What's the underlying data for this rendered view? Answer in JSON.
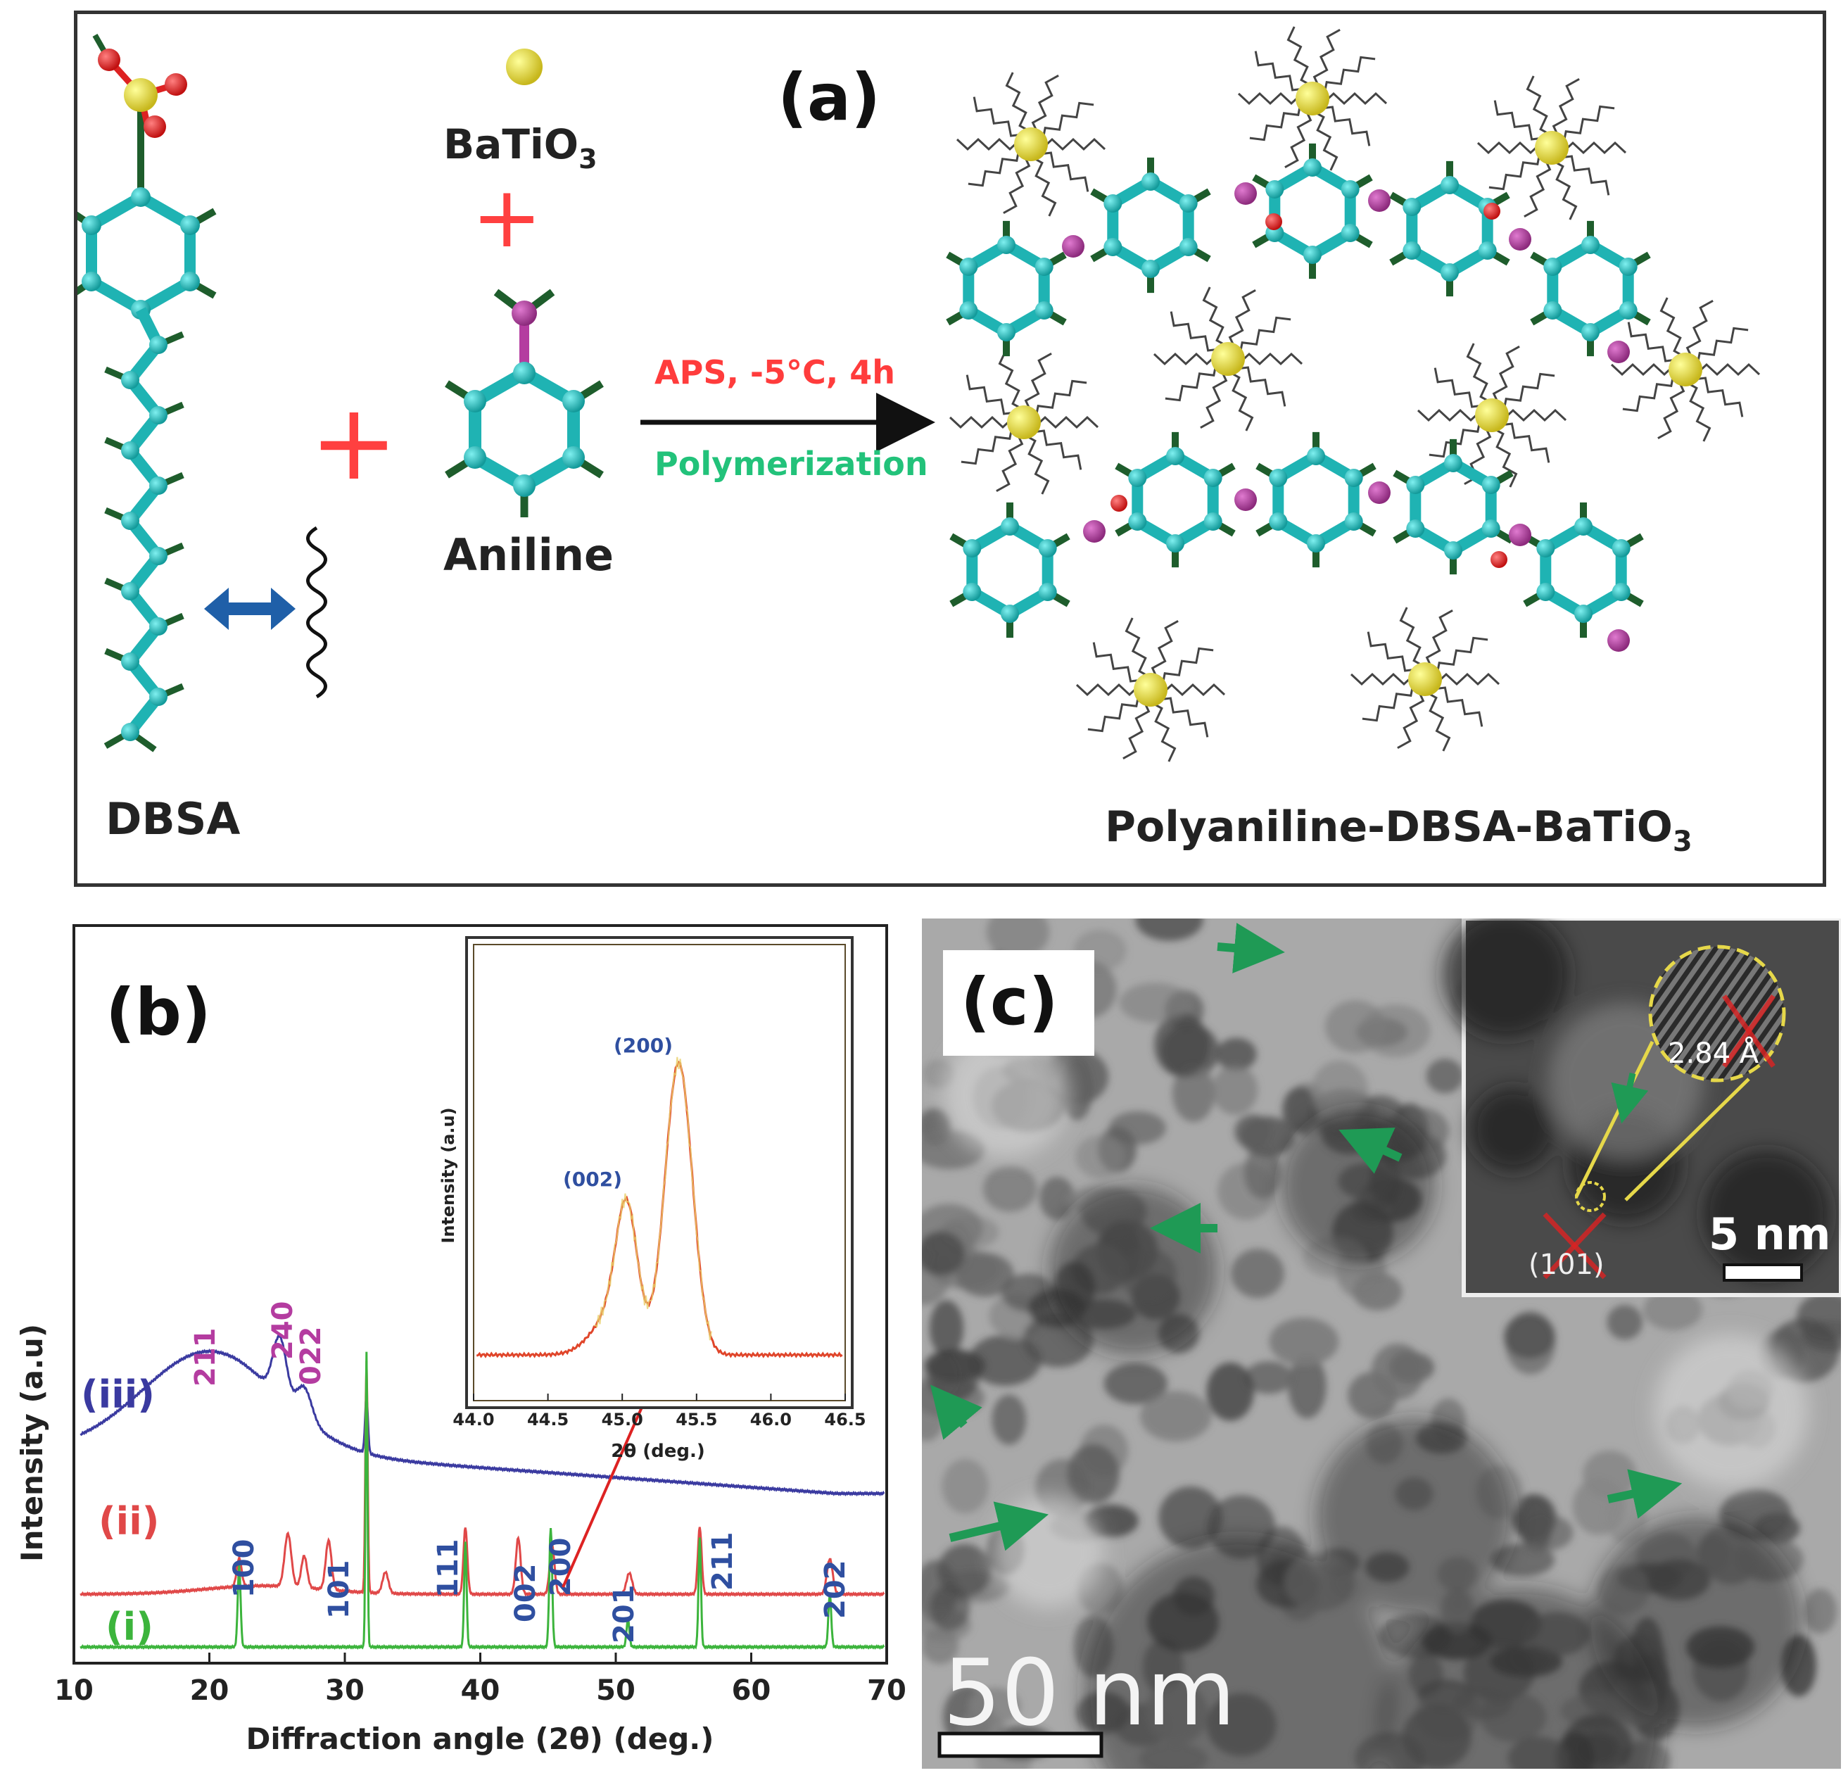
{
  "panel_a": {
    "label": "(a)",
    "dbsa_label": "DBSA",
    "batio3_label": "BaTiO",
    "batio3_sub": "3",
    "aniline_label": "Aniline",
    "plus": "+",
    "condition_label": "APS, -5°C, 4h",
    "process_label": "Polymerization",
    "product_label": "Polyaniline-DBSA-BaTiO",
    "product_sub": "3",
    "colors": {
      "carbon": "#1fb3b3",
      "hydrogen": "#1e5d2c",
      "nitrogen": "#b43ca0",
      "sulfur": "#d8cc2a",
      "oxygen": "#e02020",
      "plus": "#ff4040",
      "condition": "#ff3c3c",
      "process": "#22c27a",
      "arrow_double": "#1f5fa8"
    }
  },
  "panel_b": {
    "label": "(b)",
    "ylabel": "Intensity (a.u)",
    "xlabel": "Diffraction angle (2θ) (deg.)",
    "xticks": [
      "10",
      "20",
      "30",
      "40",
      "50",
      "60",
      "70"
    ],
    "series": [
      {
        "name": "(iii)",
        "color": "#3a3aa0"
      },
      {
        "name": "(ii)",
        "color": "#e04848"
      },
      {
        "name": "(i)",
        "color": "#3cb43c"
      }
    ],
    "peaks_iii": [
      "211",
      "240",
      "022"
    ],
    "peaks_i": [
      "100",
      "101",
      "111",
      "002",
      "200",
      "201",
      "211",
      "202"
    ],
    "inset": {
      "ylabel": "Intensity (a.u)",
      "xlabel": "2θ (deg.)",
      "xticks": [
        "44.0",
        "44.5",
        "45.0",
        "45.5",
        "46.0",
        "46.5"
      ],
      "peak_labels": [
        "(200)",
        "(002)"
      ]
    }
  },
  "panel_c": {
    "label": "(c)",
    "scale_main": "50 nm",
    "scale_inset": "5 nm",
    "d_spacing": "2.84 Å",
    "plane": "(101)"
  }
}
